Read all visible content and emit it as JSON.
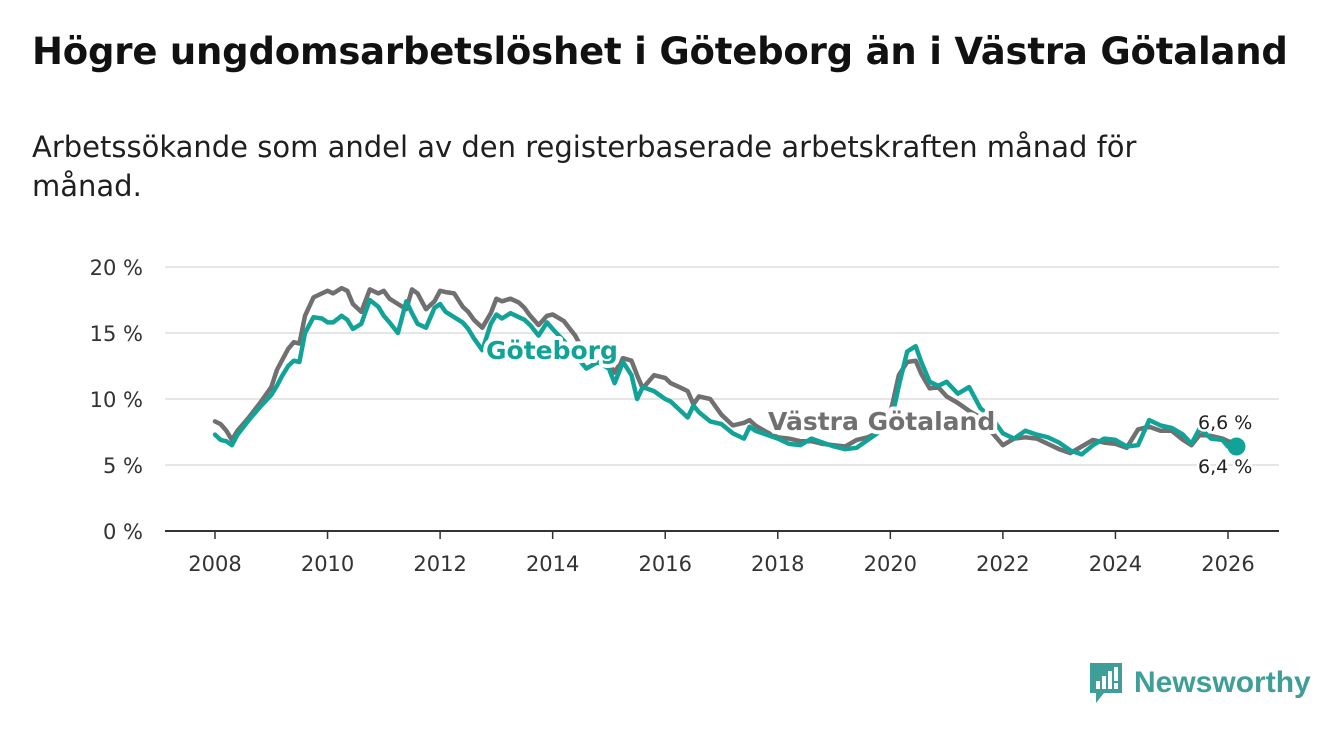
{
  "title": "Högre ungdomsarbetslöshet i Göteborg än i Västra Götaland",
  "subtitle": "Arbetssökande som andel av den registerbaserade arbetskraften månad för månad.",
  "brand": "Newsworthy",
  "colors": {
    "goteborg": "#12a398",
    "vastra": "#707070",
    "grid": "#dddddd",
    "axis": "#333333",
    "brand": "#3f9e98"
  },
  "chart_data": {
    "type": "line",
    "title": "Högre ungdomsarbetslöshet i Göteborg än i Västra Götaland",
    "subtitle": "Arbetssökande som andel av den registerbaserade arbetskraften månad för månad.",
    "xlabel": "",
    "ylabel": "",
    "xlim": [
      2008,
      2026.5
    ],
    "ylim": [
      0,
      20
    ],
    "yticks": [
      0,
      5,
      10,
      15,
      20
    ],
    "ytick_labels": [
      "0 %",
      "5 %",
      "10 %",
      "15 %",
      "20 %"
    ],
    "xticks": [
      2008,
      2010,
      2012,
      2014,
      2016,
      2018,
      2020,
      2022,
      2024,
      2026
    ],
    "xtick_labels": [
      "2008",
      "2010",
      "2012",
      "2014",
      "2016",
      "2018",
      "2020",
      "2022",
      "2024",
      "2026"
    ],
    "grid": true,
    "series": [
      {
        "name": "Västra Götaland",
        "label": "Västra Götaland",
        "end_label": "6,6 %",
        "x": [
          2008.0,
          2008.1,
          2008.2,
          2008.3,
          2008.4,
          2008.6,
          2008.8,
          2009.0,
          2009.1,
          2009.2,
          2009.3,
          2009.4,
          2009.5,
          2009.6,
          2009.75,
          2009.9,
          2010.0,
          2010.1,
          2010.25,
          2010.35,
          2010.45,
          2010.6,
          2010.75,
          2010.9,
          2011.0,
          2011.1,
          2011.25,
          2011.4,
          2011.5,
          2011.6,
          2011.75,
          2011.9,
          2012.0,
          2012.1,
          2012.25,
          2012.4,
          2012.5,
          2012.6,
          2012.75,
          2012.9,
          2013.0,
          2013.1,
          2013.25,
          2013.4,
          2013.5,
          2013.6,
          2013.75,
          2013.9,
          2014.0,
          2014.2,
          2014.4,
          2014.6,
          2014.8,
          2015.0,
          2015.1,
          2015.25,
          2015.4,
          2015.5,
          2015.6,
          2015.8,
          2016.0,
          2016.1,
          2016.25,
          2016.4,
          2016.5,
          2016.6,
          2016.8,
          2017.0,
          2017.2,
          2017.4,
          2017.5,
          2017.6,
          2017.8,
          2018.0,
          2018.2,
          2018.4,
          2018.6,
          2018.8,
          2019.0,
          2019.2,
          2019.4,
          2019.6,
          2019.8,
          2020.0,
          2020.15,
          2020.3,
          2020.45,
          2020.55,
          2020.7,
          2020.85,
          2021.0,
          2021.2,
          2021.4,
          2021.6,
          2021.8,
          2022.0,
          2022.2,
          2022.4,
          2022.6,
          2022.8,
          2023.0,
          2023.2,
          2023.4,
          2023.6,
          2023.8,
          2024.0,
          2024.2,
          2024.4,
          2024.6,
          2024.8,
          2025.0,
          2025.2,
          2025.35,
          2025.5,
          2025.7,
          2025.9,
          2026.0,
          2026.15
        ],
        "values": [
          8.3,
          8.1,
          7.6,
          6.9,
          7.6,
          8.6,
          9.7,
          10.9,
          12.2,
          13.0,
          13.8,
          14.3,
          14.2,
          16.3,
          17.7,
          18.0,
          18.2,
          18.0,
          18.4,
          18.2,
          17.2,
          16.6,
          18.3,
          18.0,
          18.2,
          17.6,
          17.2,
          16.8,
          18.3,
          18.0,
          16.8,
          17.4,
          18.2,
          18.1,
          18.0,
          17.0,
          16.6,
          16.0,
          15.4,
          16.5,
          17.6,
          17.4,
          17.6,
          17.3,
          16.9,
          16.3,
          15.6,
          16.3,
          16.4,
          15.9,
          14.8,
          13.2,
          13.6,
          12.7,
          12.0,
          13.1,
          12.9,
          11.8,
          10.8,
          11.8,
          11.6,
          11.2,
          10.9,
          10.6,
          9.6,
          10.2,
          10.0,
          8.8,
          8.0,
          8.2,
          8.4,
          8.0,
          7.5,
          7.1,
          7.0,
          6.8,
          6.8,
          6.6,
          6.5,
          6.4,
          6.9,
          7.1,
          7.5,
          8.9,
          11.8,
          12.8,
          12.9,
          11.9,
          10.8,
          10.9,
          10.2,
          9.7,
          9.1,
          8.6,
          7.5,
          6.5,
          7.0,
          7.1,
          7.0,
          6.6,
          6.2,
          5.9,
          6.4,
          6.9,
          6.7,
          6.6,
          6.3,
          7.7,
          7.9,
          7.6,
          7.6,
          6.9,
          6.5,
          7.3,
          7.2,
          7.0,
          6.8,
          6.6
        ]
      },
      {
        "name": "Göteborg",
        "label": "Göteborg",
        "end_label": "6,4 %",
        "x": [
          2008.0,
          2008.1,
          2008.2,
          2008.3,
          2008.4,
          2008.6,
          2008.8,
          2009.0,
          2009.1,
          2009.2,
          2009.3,
          2009.4,
          2009.5,
          2009.6,
          2009.75,
          2009.9,
          2010.0,
          2010.1,
          2010.25,
          2010.35,
          2010.45,
          2010.6,
          2010.75,
          2010.9,
          2011.0,
          2011.1,
          2011.25,
          2011.4,
          2011.5,
          2011.6,
          2011.75,
          2011.9,
          2012.0,
          2012.1,
          2012.25,
          2012.4,
          2012.5,
          2012.6,
          2012.75,
          2012.9,
          2013.0,
          2013.1,
          2013.25,
          2013.4,
          2013.5,
          2013.6,
          2013.75,
          2013.9,
          2014.0,
          2014.2,
          2014.4,
          2014.6,
          2014.8,
          2015.0,
          2015.1,
          2015.25,
          2015.4,
          2015.5,
          2015.6,
          2015.8,
          2016.0,
          2016.1,
          2016.25,
          2016.4,
          2016.5,
          2016.6,
          2016.8,
          2017.0,
          2017.2,
          2017.4,
          2017.5,
          2017.6,
          2017.8,
          2018.0,
          2018.2,
          2018.4,
          2018.6,
          2018.8,
          2019.0,
          2019.2,
          2019.4,
          2019.6,
          2019.8,
          2020.0,
          2020.15,
          2020.3,
          2020.45,
          2020.55,
          2020.7,
          2020.85,
          2021.0,
          2021.2,
          2021.4,
          2021.6,
          2021.8,
          2022.0,
          2022.2,
          2022.4,
          2022.6,
          2022.8,
          2023.0,
          2023.2,
          2023.4,
          2023.6,
          2023.8,
          2024.0,
          2024.2,
          2024.4,
          2024.6,
          2024.8,
          2025.0,
          2025.2,
          2025.35,
          2025.5,
          2025.7,
          2025.9,
          2026.0,
          2026.15
        ],
        "values": [
          7.3,
          6.9,
          6.8,
          6.5,
          7.3,
          8.4,
          9.4,
          10.3,
          11.0,
          11.8,
          12.5,
          12.9,
          12.8,
          15.0,
          16.2,
          16.1,
          15.8,
          15.8,
          16.3,
          16.0,
          15.3,
          15.7,
          17.5,
          17.0,
          16.3,
          15.8,
          15.0,
          17.4,
          16.5,
          15.7,
          15.4,
          16.9,
          17.2,
          16.6,
          16.2,
          15.8,
          15.3,
          14.6,
          13.7,
          15.7,
          16.4,
          16.1,
          16.5,
          16.2,
          16.0,
          15.6,
          14.8,
          15.8,
          15.3,
          14.4,
          13.3,
          12.3,
          12.8,
          12.3,
          11.2,
          12.8,
          11.8,
          10.0,
          10.9,
          10.6,
          10.0,
          9.8,
          9.2,
          8.6,
          9.5,
          9.0,
          8.3,
          8.1,
          7.4,
          7.0,
          7.9,
          7.6,
          7.3,
          7.0,
          6.6,
          6.5,
          7.0,
          6.7,
          6.4,
          6.2,
          6.3,
          6.9,
          7.5,
          8.0,
          11.0,
          13.6,
          14.0,
          12.8,
          11.3,
          11.0,
          11.3,
          10.4,
          10.9,
          9.3,
          8.6,
          7.4,
          7.0,
          7.6,
          7.3,
          7.1,
          6.7,
          6.1,
          5.8,
          6.5,
          7.0,
          6.9,
          6.4,
          6.5,
          8.4,
          8.0,
          7.8,
          7.3,
          6.6,
          7.8,
          7.0,
          6.9,
          6.4,
          6.4
        ]
      }
    ]
  }
}
